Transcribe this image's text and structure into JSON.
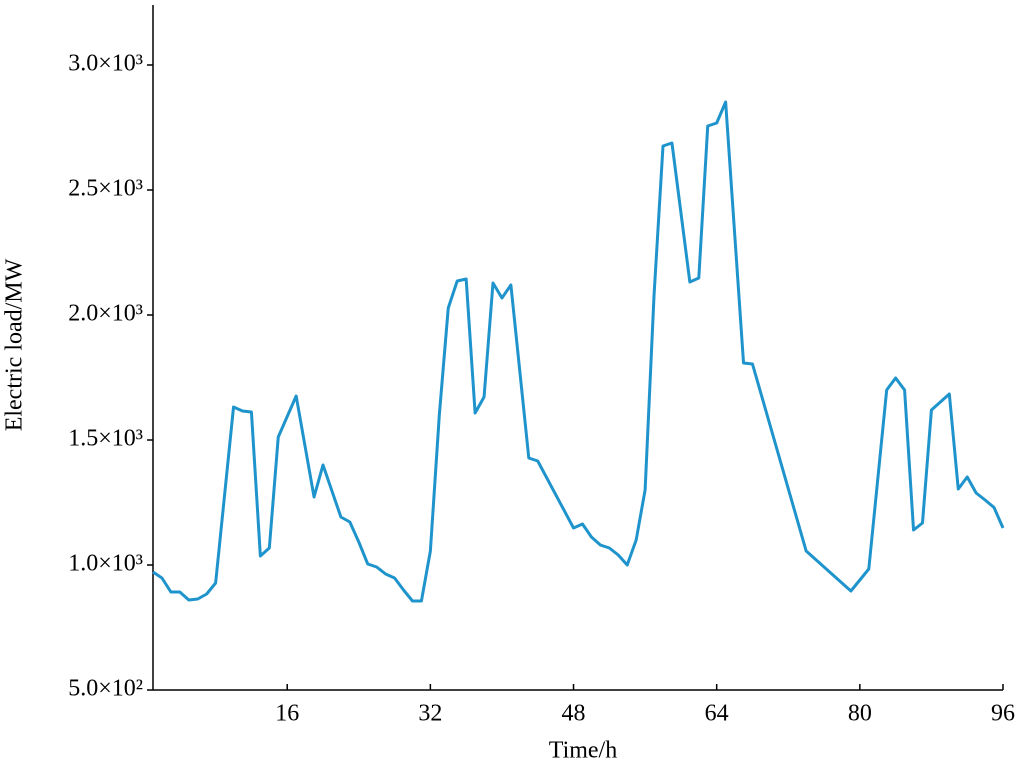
{
  "chart_data": {
    "type": "line",
    "x_label": "Time/h",
    "y_label": "Electric load/MW",
    "x": [
      1,
      2,
      3,
      4,
      5,
      6,
      7,
      8,
      10,
      11,
      12,
      13,
      14,
      15,
      17,
      19,
      20,
      22,
      23,
      24,
      25,
      26,
      27,
      28,
      29,
      30,
      31,
      32,
      33,
      34,
      35,
      36,
      37,
      38,
      39,
      40,
      41,
      43,
      44,
      48,
      49,
      50,
      51,
      52,
      53,
      54,
      55,
      56,
      57,
      58,
      59,
      61,
      62,
      63,
      64,
      65,
      67,
      68,
      74,
      79,
      81,
      83,
      84,
      85,
      86,
      87,
      88,
      90,
      91,
      92,
      93,
      94,
      95,
      96
    ],
    "series": [
      {
        "name": "Electric load",
        "color": "#1f94cc",
        "values": [
          972,
          948,
          892,
          892,
          860,
          864,
          884,
          928,
          1632,
          1616,
          1612,
          1036,
          1068,
          1512,
          1676,
          1272,
          1400,
          1192,
          1172,
          1092,
          1004,
          992,
          964,
          948,
          900,
          856,
          856,
          1056,
          1600,
          2028,
          2136,
          2144,
          1608,
          1672,
          2128,
          2068,
          2120,
          1428,
          1416,
          1148,
          1164,
          1112,
          1080,
          1068,
          1040,
          1000,
          1100,
          1300,
          2080,
          2676,
          2688,
          2132,
          2148,
          2756,
          2768,
          2852,
          1808,
          1804,
          1056,
          896,
          984,
          1700,
          1748,
          1700,
          1140,
          1168,
          1620,
          1684,
          1304,
          1352,
          1288,
          1260,
          1230,
          1148
        ]
      }
    ],
    "xlim": [
      1,
      96
    ],
    "xticks": [
      16,
      32,
      48,
      64,
      80,
      96
    ],
    "ylim": [
      500,
      3240
    ],
    "yticks": [
      {
        "value": 500,
        "label": "5.0×10²"
      },
      {
        "value": 1000,
        "label": "1.0×10³"
      },
      {
        "value": 1500,
        "label": "1.5×10³"
      },
      {
        "value": 2000,
        "label": "2.0×10³"
      },
      {
        "value": 2500,
        "label": "2.5×10³"
      },
      {
        "value": 3000,
        "label": "3.0×10³"
      }
    ]
  }
}
